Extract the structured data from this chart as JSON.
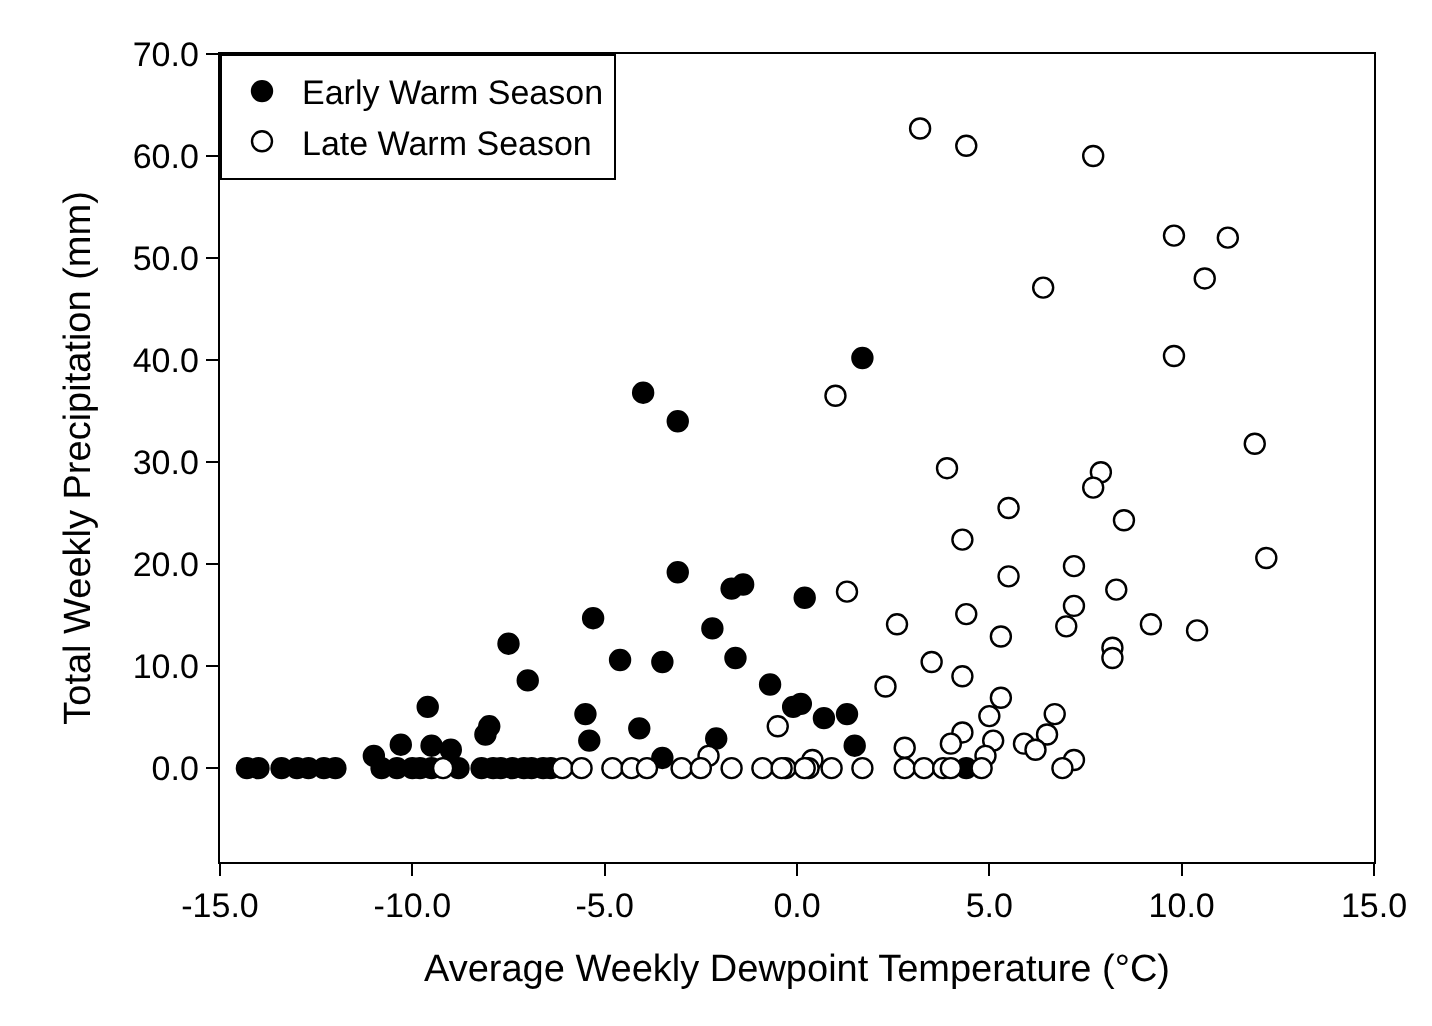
{
  "chart_data": {
    "type": "scatter",
    "xlabel": "Average Weekly Dewpoint Temperature (°C)",
    "ylabel": "Total Weekly Precipitation (mm)",
    "xlim": [
      -15,
      15
    ],
    "ylim": [
      -9.2,
      70
    ],
    "xticks": [
      {
        "value": -15,
        "label": "-15.0"
      },
      {
        "value": -10,
        "label": "-10.0"
      },
      {
        "value": -5,
        "label": "-5.0"
      },
      {
        "value": 0,
        "label": "0.0"
      },
      {
        "value": 5,
        "label": "5.0"
      },
      {
        "value": 10,
        "label": "10.0"
      },
      {
        "value": 15,
        "label": "15.0"
      }
    ],
    "yticks": [
      {
        "value": 0,
        "label": "0.0"
      },
      {
        "value": 10,
        "label": "10.0"
      },
      {
        "value": 20,
        "label": "20.0"
      },
      {
        "value": 30,
        "label": "30.0"
      },
      {
        "value": 40,
        "label": "40.0"
      },
      {
        "value": 50,
        "label": "50.0"
      },
      {
        "value": 60,
        "label": "60.0"
      },
      {
        "value": 70,
        "label": "70.0"
      }
    ],
    "legend": "top left",
    "marker": "circle",
    "series": [
      {
        "name": "Early Warm Season",
        "color": "#000000",
        "x": [
          -4.0,
          -3.1,
          -3.1,
          -5.3,
          -7.5,
          -7.0,
          -9.6,
          -10.3,
          -11.0,
          -9.5,
          -9.0,
          -8.0,
          -8.1,
          -5.5,
          -5.4,
          -4.6,
          -4.1,
          -3.5,
          -3.5,
          -2.2,
          -2.1,
          -1.7,
          -1.4,
          -1.6,
          -0.7,
          -0.1,
          0.1,
          0.2,
          0.7,
          1.3,
          1.5,
          1.7,
          -14.3,
          -14.0,
          -13.4,
          -13.0,
          -12.7,
          -12.3,
          -12.0,
          -10.8,
          -10.4,
          -10.0,
          -9.8,
          -9.5,
          -8.8,
          -8.2,
          -7.9,
          -7.7,
          -7.4,
          -7.1,
          -6.9,
          -6.6,
          -6.4,
          4.4
        ],
        "values": [
          36.8,
          34.0,
          19.2,
          14.7,
          12.2,
          8.6,
          6.0,
          2.3,
          1.2,
          2.2,
          1.8,
          4.1,
          3.3,
          5.3,
          2.7,
          10.6,
          3.9,
          10.4,
          1.0,
          13.7,
          2.9,
          17.6,
          18.0,
          10.8,
          8.2,
          6.0,
          6.3,
          16.7,
          4.9,
          5.3,
          2.2,
          40.2,
          0,
          0,
          0,
          0,
          0,
          0,
          0,
          0,
          0,
          0,
          0,
          0,
          0,
          0,
          0,
          0,
          0,
          0,
          0,
          0,
          0,
          0
        ]
      },
      {
        "name": "Late Warm Season",
        "color": "#ffffff",
        "x": [
          3.2,
          4.4,
          7.7,
          9.8,
          11.2,
          10.6,
          6.4,
          9.8,
          1.0,
          11.9,
          3.9,
          7.9,
          7.7,
          5.5,
          8.5,
          4.3,
          12.2,
          7.2,
          5.5,
          8.3,
          1.3,
          7.2,
          7.0,
          4.4,
          2.6,
          9.2,
          10.4,
          5.3,
          8.2,
          8.2,
          3.5,
          4.3,
          2.3,
          5.3,
          5.0,
          6.7,
          4.3,
          5.1,
          6.5,
          4.0,
          5.9,
          6.2,
          4.9,
          7.2,
          6.9,
          2.8,
          0.4,
          -2.3,
          -0.5,
          -0.3,
          0.3,
          0.9,
          1.7,
          2.8,
          3.3,
          3.8,
          4.0,
          4.8,
          -9.2,
          -6.1,
          -5.6,
          -4.8,
          -4.3,
          -3.9,
          -3.0,
          -2.5,
          -1.7,
          -0.9,
          -0.4,
          0.2
        ],
        "values": [
          62.7,
          61.0,
          60.0,
          52.2,
          52.0,
          48.0,
          47.1,
          40.4,
          36.5,
          31.8,
          29.4,
          29.0,
          27.5,
          25.5,
          24.3,
          22.4,
          20.6,
          19.8,
          18.8,
          17.5,
          17.3,
          15.9,
          13.9,
          15.1,
          14.1,
          14.1,
          13.5,
          12.9,
          11.8,
          10.8,
          10.4,
          9.0,
          8.0,
          6.9,
          5.1,
          5.3,
          3.5,
          2.7,
          3.3,
          2.4,
          2.4,
          1.8,
          1.2,
          0.8,
          0,
          2.0,
          0.8,
          1.2,
          4.1,
          0,
          0,
          0,
          0,
          0,
          0,
          0,
          0,
          0,
          0,
          0,
          0,
          0,
          0,
          0,
          0,
          0,
          0,
          0,
          0,
          0
        ]
      }
    ]
  }
}
